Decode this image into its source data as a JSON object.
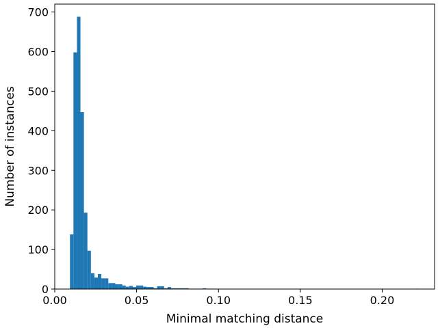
{
  "chart_data": {
    "type": "bar",
    "xlabel": "Minimal matching distance",
    "ylabel": "Number of instances",
    "xlim": [
      0.0,
      0.232
    ],
    "ylim": [
      0,
      720
    ],
    "xticks": [
      0.0,
      0.05,
      0.1,
      0.15,
      0.2
    ],
    "xtick_labels": [
      "0.00",
      "0.05",
      "0.10",
      "0.15",
      "0.20"
    ],
    "yticks": [
      0,
      100,
      200,
      300,
      400,
      500,
      600,
      700
    ],
    "ytick_labels": [
      "0",
      "100",
      "200",
      "300",
      "400",
      "500",
      "600",
      "700"
    ],
    "bar_color": "#1f77b4",
    "grid": false,
    "bin_start": 0.0093,
    "bin_width": 0.00213,
    "values": [
      138,
      598,
      688,
      447,
      193,
      97,
      40,
      29,
      38,
      27,
      27,
      15,
      15,
      12,
      12,
      9,
      6,
      8,
      5,
      9,
      9,
      6,
      5,
      5,
      2,
      7,
      7,
      2,
      5,
      2,
      2,
      2,
      2,
      2,
      1,
      1,
      1,
      1,
      2,
      1,
      1,
      1,
      0,
      0,
      0,
      0,
      0,
      0,
      0,
      0,
      0,
      0,
      0,
      0,
      0,
      0,
      0,
      0,
      0,
      0,
      0,
      0,
      0,
      0,
      0,
      0,
      0,
      0,
      0,
      0,
      0,
      0,
      0,
      0,
      0,
      0,
      0,
      0,
      0,
      0,
      0,
      0,
      0,
      0,
      0,
      0,
      0,
      0,
      0,
      0,
      0,
      0,
      0,
      0,
      0,
      0,
      0,
      0,
      0,
      1
    ]
  }
}
